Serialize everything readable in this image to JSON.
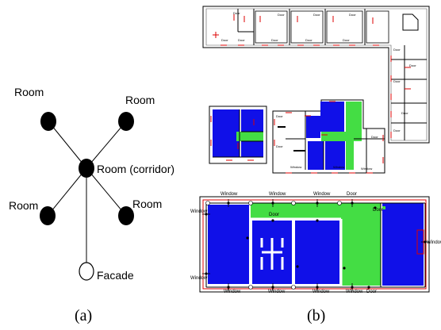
{
  "graph": {
    "nodes": [
      {
        "id": "room-top-left",
        "label": "Room",
        "fill": "#000000"
      },
      {
        "id": "room-top-right",
        "label": "Room",
        "fill": "#000000"
      },
      {
        "id": "room-corridor",
        "label": "Room (corridor)",
        "fill": "#000000"
      },
      {
        "id": "room-bottom-left",
        "label": "Room",
        "fill": "#000000"
      },
      {
        "id": "room-bottom-right",
        "label": "Room",
        "fill": "#000000"
      },
      {
        "id": "facade",
        "label": "Facade",
        "fill": "#ffffff"
      }
    ],
    "edges": [
      [
        "room-top-left",
        "room-corridor"
      ],
      [
        "room-top-right",
        "room-corridor"
      ],
      [
        "room-bottom-left",
        "room-corridor"
      ],
      [
        "room-bottom-right",
        "room-corridor"
      ],
      [
        "facade",
        "room-corridor"
      ]
    ]
  },
  "captions": {
    "a": "(a)",
    "b": "(b)"
  },
  "plan_labels": {
    "door": "Door",
    "window": "Window"
  },
  "colors": {
    "room_blue": "#1010e8",
    "corridor_green": "#44dd44",
    "wall": "#000000",
    "marker_red": "#dd0000",
    "node_black": "#000000"
  }
}
